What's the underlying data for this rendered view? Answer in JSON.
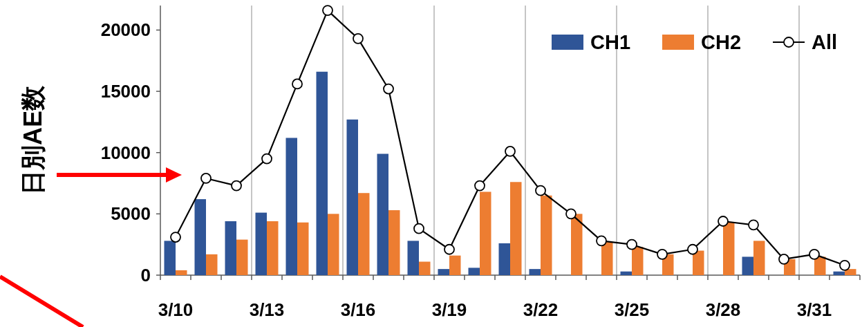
{
  "chart_data": {
    "type": "bar",
    "ylabel": "日別AE数",
    "categories": [
      "3/10",
      null,
      null,
      "3/13",
      null,
      null,
      "3/16",
      null,
      null,
      "3/19",
      null,
      null,
      "3/22",
      null,
      null,
      "3/25",
      null,
      null,
      "3/28",
      null,
      null,
      "3/31",
      null
    ],
    "series": [
      {
        "name": "CH1",
        "color": "#2f5597",
        "values": [
          2800,
          6200,
          4400,
          5100,
          11200,
          16600,
          12700,
          9900,
          2800,
          500,
          600,
          2600,
          500,
          0,
          0,
          300,
          0,
          0,
          0,
          1500,
          0,
          0,
          300
        ]
      },
      {
        "name": "CH2",
        "color": "#ed7d31",
        "values": [
          400,
          1700,
          2900,
          4400,
          4300,
          5000,
          6700,
          5300,
          1100,
          1600,
          6800,
          7600,
          6500,
          5000,
          2700,
          2300,
          1700,
          2000,
          4300,
          2800,
          1300,
          1500,
          500
        ]
      },
      {
        "name": "All",
        "type": "line",
        "color": "#000000",
        "marker": "circle",
        "values": [
          3100,
          7900,
          7300,
          9500,
          15600,
          21600,
          19300,
          15200,
          3800,
          2100,
          7300,
          10100,
          6900,
          5000,
          2800,
          2500,
          1700,
          2100,
          4400,
          4100,
          1300,
          1700,
          800
        ]
      }
    ],
    "ylim": [
      0,
      22000
    ],
    "yticks": [
      0,
      5000,
      10000,
      15000,
      20000
    ],
    "grid": "x",
    "legend": "top right"
  }
}
